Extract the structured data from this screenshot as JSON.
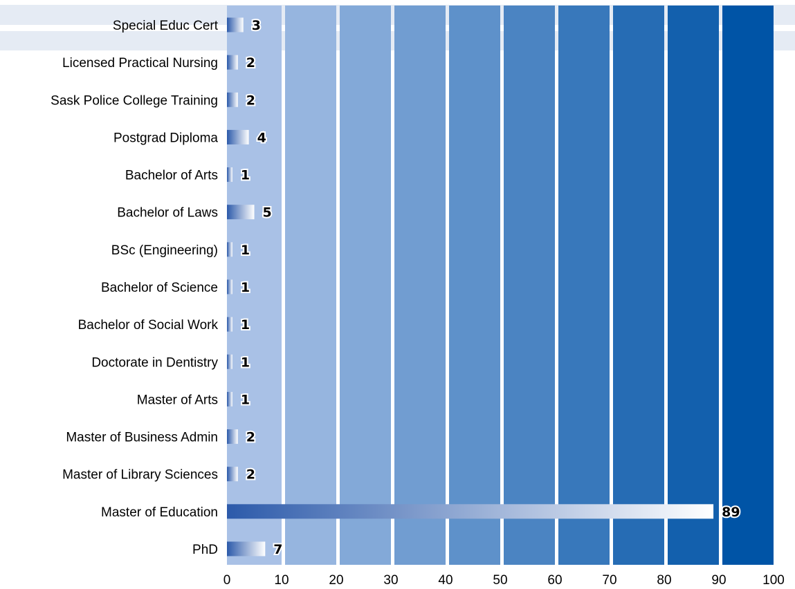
{
  "chart_data": {
    "type": "bar",
    "orientation": "horizontal",
    "categories": [
      "Special Educ Cert",
      "Licensed Practical Nursing",
      "Sask Police College Training",
      "Postgrad Diploma",
      "Bachelor of Arts",
      "Bachelor of Laws",
      "BSc (Engineering)",
      "Bachelor of Science",
      "Bachelor of Social Work",
      "Doctorate in Dentistry",
      "Master of Arts",
      "Master of Business Admin",
      "Master of Library Sciences",
      "Master of Education",
      "PhD"
    ],
    "values": [
      3,
      2,
      2,
      4,
      1,
      5,
      1,
      1,
      1,
      1,
      1,
      2,
      2,
      89,
      7
    ],
    "value_labels": [
      "3",
      "2",
      "2",
      "4",
      "1",
      "5",
      "1",
      "1",
      "1",
      "1",
      "1",
      "2",
      "2",
      "89",
      "7"
    ],
    "xlim": [
      0,
      100
    ],
    "xticks": [
      0,
      10,
      20,
      30,
      40,
      50,
      60,
      70,
      80,
      90,
      100
    ],
    "xtick_labels": [
      "0",
      "10",
      "20",
      "30",
      "40",
      "50",
      "60",
      "70",
      "80",
      "90",
      "100"
    ],
    "title": "",
    "xlabel": "",
    "ylabel": "",
    "grid": "vertical bands",
    "legend": "none",
    "colors": {
      "bar_start": "#2c5aaa",
      "bar_end": "#ffffff",
      "band_light": "#a9c1e6",
      "band_dark": "#0054a6",
      "header_stripe": "#e5ebf4"
    }
  }
}
